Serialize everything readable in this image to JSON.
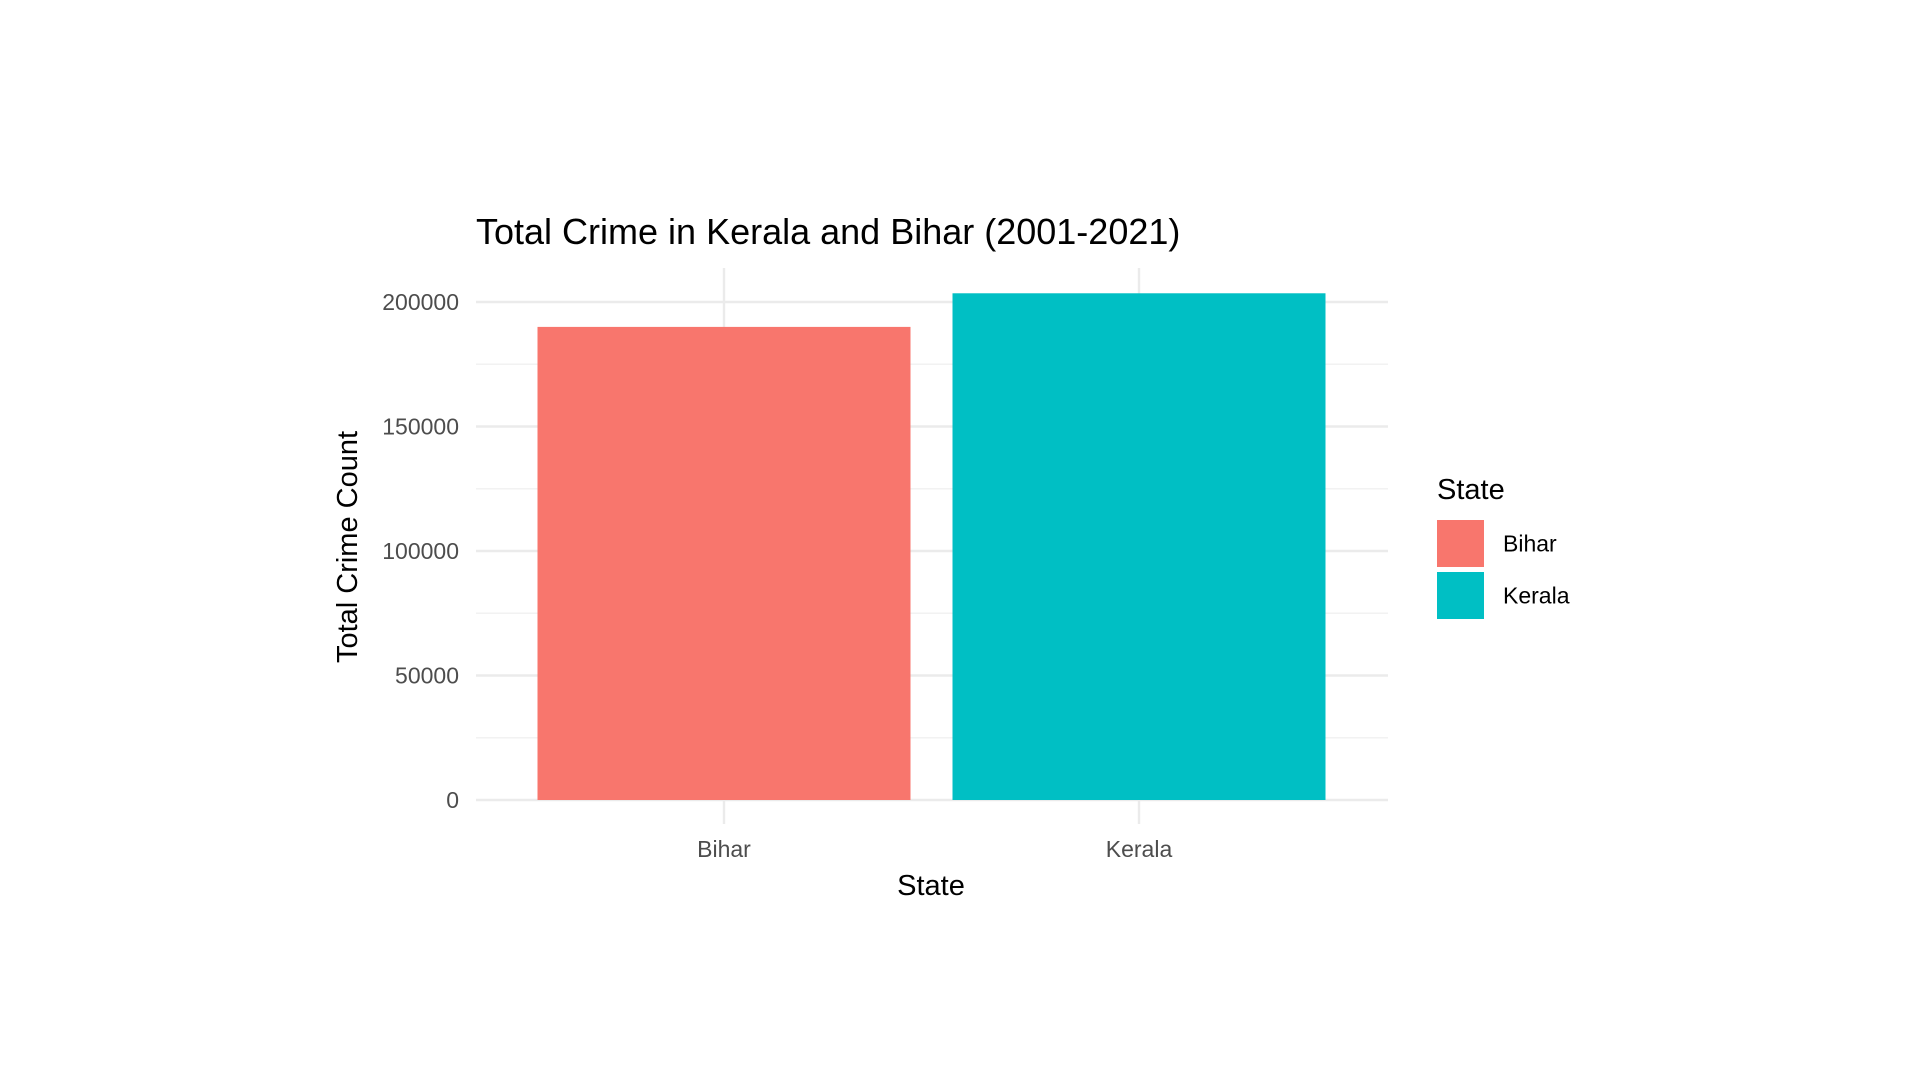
{
  "chart_data": {
    "type": "bar",
    "title": "Total Crime in Kerala and Bihar (2001-2021)",
    "xlabel": "State",
    "ylabel": "Total Crime Count",
    "categories": [
      "Bihar",
      "Kerala"
    ],
    "values": [
      190000,
      203500
    ],
    "colors": [
      "#F8766D",
      "#00BFC4"
    ],
    "ylim": [
      0,
      210000
    ],
    "yticks": [
      0,
      50000,
      100000,
      150000,
      200000
    ],
    "ytick_labels": [
      "0",
      "50000",
      "100000",
      "150000",
      "200000"
    ],
    "grid": true,
    "legend": {
      "title": "State",
      "placement": "right",
      "entries": [
        {
          "label": "Bihar",
          "color": "#F8766D"
        },
        {
          "label": "Kerala",
          "color": "#00BFC4"
        }
      ]
    }
  }
}
